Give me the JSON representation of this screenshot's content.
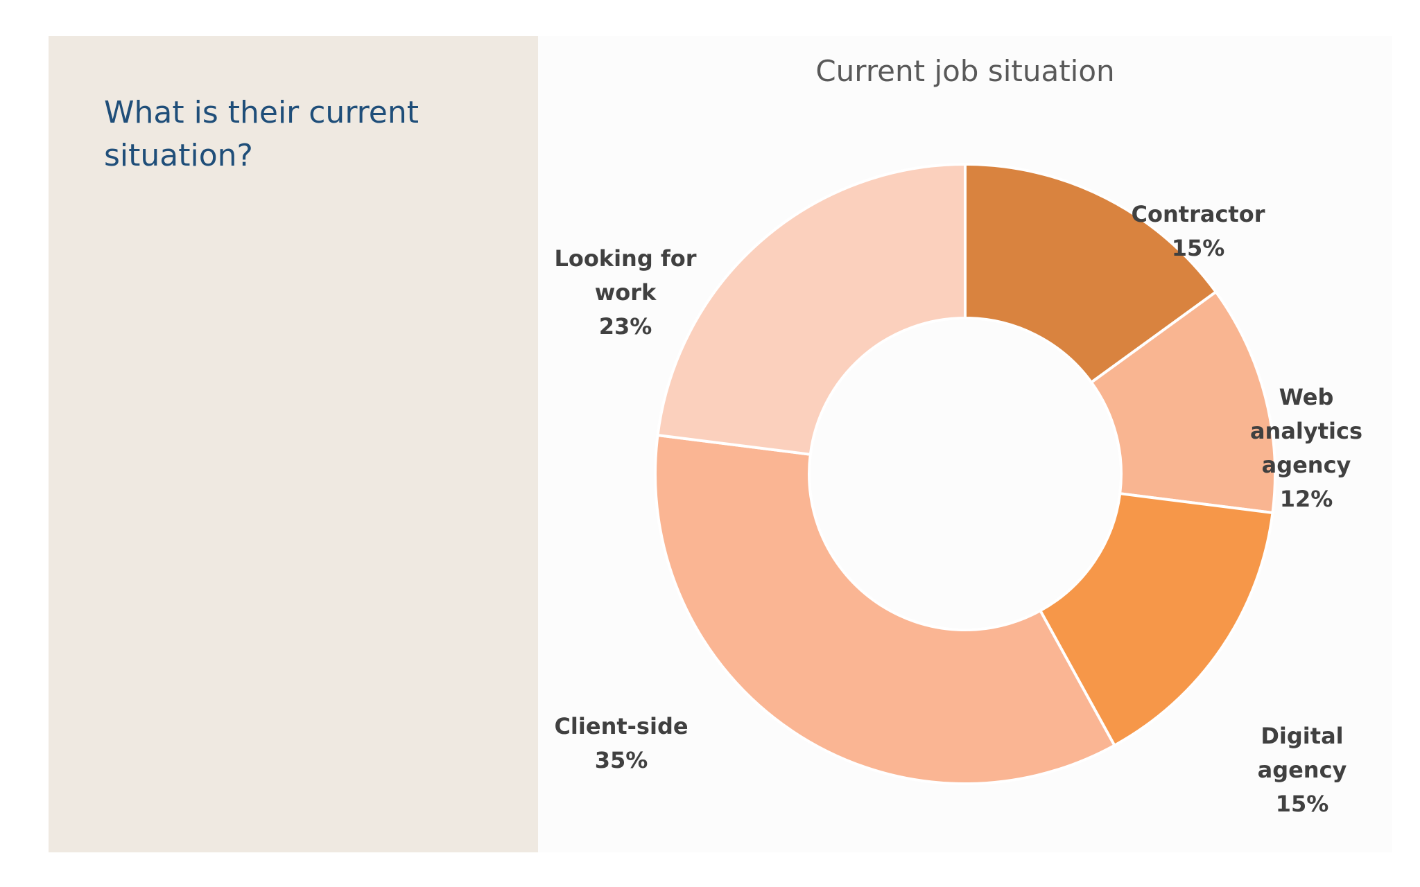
{
  "slide": {
    "question": "What is their current situation?"
  },
  "colors": {
    "panel": "#efe9e1",
    "question": "#1f4e79",
    "title": "#595959",
    "label": "#404040"
  },
  "chart_data": {
    "type": "pie",
    "variant": "donut",
    "title": "Current job situation",
    "start": "12 o'clock, clockwise",
    "legend": "none (data labels on slices)",
    "slices": [
      {
        "label": "Contractor",
        "value": 15,
        "value_label": "15%",
        "color": "#d9833f"
      },
      {
        "label": "Web analytics agency",
        "value": 12,
        "value_label": "12%",
        "color": "#f9b591"
      },
      {
        "label": "Digital agency",
        "value": 15,
        "value_label": "15%",
        "color": "#f69749"
      },
      {
        "label": "Client-side",
        "value": 35,
        "value_label": "35%",
        "color": "#fab593"
      },
      {
        "label": "Looking for work",
        "value": 23,
        "value_label": "23%",
        "color": "#fbd0bd"
      }
    ]
  }
}
